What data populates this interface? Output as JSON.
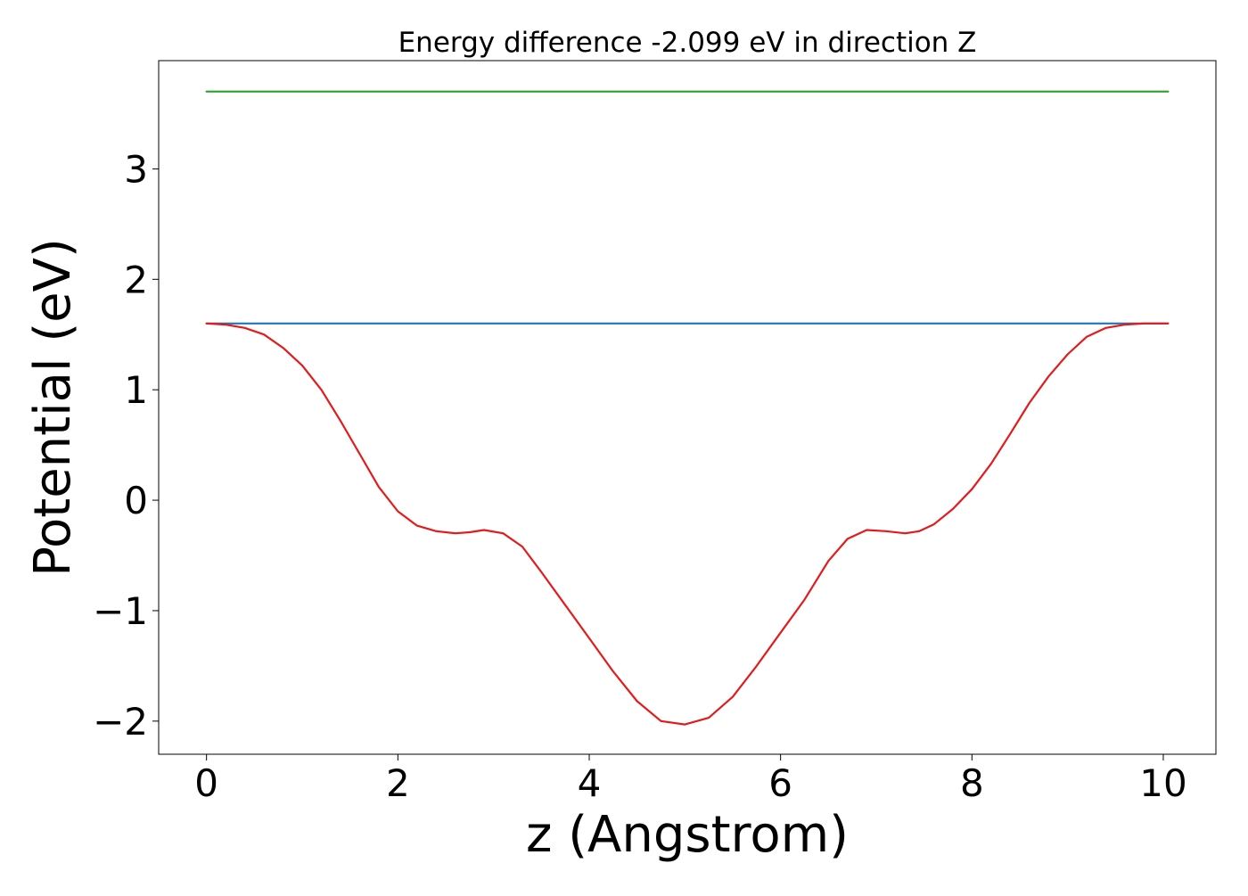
{
  "chart_data": {
    "type": "line",
    "title": "Energy difference -2.099 eV in direction Z",
    "xlabel": "z (Angstrom)",
    "ylabel": "Potential (eV)",
    "xlim": [
      -0.5,
      10.55
    ],
    "ylim": [
      -2.3,
      3.98
    ],
    "xticks": [
      0,
      2,
      4,
      6,
      8,
      10
    ],
    "xtick_labels": [
      "0",
      "2",
      "4",
      "6",
      "8",
      "10"
    ],
    "yticks": [
      -2,
      -1,
      0,
      1,
      2,
      3
    ],
    "ytick_labels": [
      "−2",
      "−1",
      "0",
      "1",
      "2",
      "3"
    ],
    "grid": false,
    "legend": "none",
    "series": [
      {
        "color": "#2ca02c",
        "x": [
          0,
          10.05
        ],
        "y": [
          3.7,
          3.7
        ]
      },
      {
        "color": "#1f77b4",
        "x": [
          0,
          10.05
        ],
        "y": [
          1.6,
          1.6
        ]
      },
      {
        "color": "#e41a1c",
        "x": [
          0,
          0.2,
          0.4,
          0.6,
          0.8,
          1.0,
          1.2,
          1.4,
          1.6,
          1.8,
          2.0,
          2.2,
          2.4,
          2.6,
          2.75,
          2.9,
          3.1,
          3.3,
          3.5,
          3.75,
          4.0,
          4.25,
          4.5,
          4.75,
          5.0,
          5.25,
          5.5,
          5.75,
          6.0,
          6.25,
          6.5,
          6.7,
          6.9,
          7.1,
          7.3,
          7.45,
          7.6,
          7.8,
          8.0,
          8.2,
          8.4,
          8.6,
          8.8,
          9.0,
          9.2,
          9.4,
          9.6,
          9.8,
          10.05
        ],
        "y": [
          1.6,
          1.59,
          1.56,
          1.5,
          1.38,
          1.22,
          1.0,
          0.72,
          0.42,
          0.12,
          -0.1,
          -0.23,
          -0.28,
          -0.3,
          -0.29,
          -0.27,
          -0.3,
          -0.42,
          -0.65,
          -0.95,
          -1.25,
          -1.55,
          -1.82,
          -2.0,
          -2.03,
          -1.97,
          -1.78,
          -1.5,
          -1.2,
          -0.9,
          -0.55,
          -0.35,
          -0.27,
          -0.28,
          -0.3,
          -0.28,
          -0.22,
          -0.08,
          0.1,
          0.33,
          0.6,
          0.88,
          1.12,
          1.32,
          1.48,
          1.56,
          1.59,
          1.6,
          1.6
        ]
      }
    ]
  }
}
